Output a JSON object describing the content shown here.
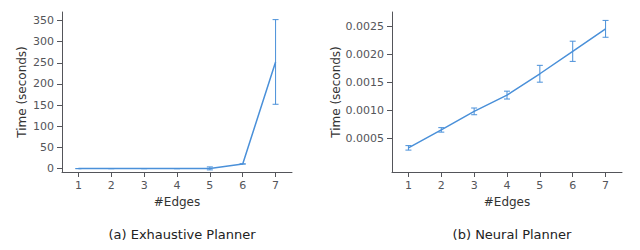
{
  "chart_data": [
    {
      "type": "line",
      "title": "(a) Exhaustive Planner",
      "xlabel": "#Edges",
      "ylabel": "Time (seconds)",
      "x": [
        1,
        2,
        3,
        4,
        5,
        6,
        7
      ],
      "values": [
        0.0001,
        0.0001,
        0.0001,
        0.0001,
        0.5,
        11.0,
        252.0
      ],
      "errors": [
        0.0,
        0.0,
        0.0,
        0.0,
        3.5,
        0.0,
        100.0
      ],
      "color": "#4a90d9",
      "xlim": [
        0.5,
        7.5
      ],
      "xticks": [
        1,
        2,
        3,
        4,
        5,
        6,
        7
      ],
      "ylim": [
        -8,
        370
      ],
      "yticks": [
        0,
        50,
        100,
        150,
        200,
        250,
        300,
        350
      ],
      "grid": false
    },
    {
      "type": "line",
      "title": "(b) Neural Planner",
      "xlabel": "#Edges",
      "ylabel": "Time (seconds)",
      "x": [
        1,
        2,
        3,
        4,
        5,
        6,
        7
      ],
      "values": [
        0.00033,
        0.00065,
        0.00098,
        0.00127,
        0.00165,
        0.00205,
        0.00245
      ],
      "errors": [
        4e-05,
        4e-05,
        6e-05,
        7e-05,
        0.00015,
        0.00018,
        0.00015
      ],
      "color": "#4a90d9",
      "xlim": [
        0.5,
        7.5
      ],
      "xticks": [
        1,
        2,
        3,
        4,
        5,
        6,
        7
      ],
      "ylim": [
        -0.0001,
        0.00275
      ],
      "yticks": [
        0.0005,
        {
          "value": 0.001,
          "label": "0.0010"
        },
        0.0015,
        {
          "value": 0.002,
          "label": "0.0020"
        },
        0.0025
      ],
      "grid": false
    }
  ]
}
